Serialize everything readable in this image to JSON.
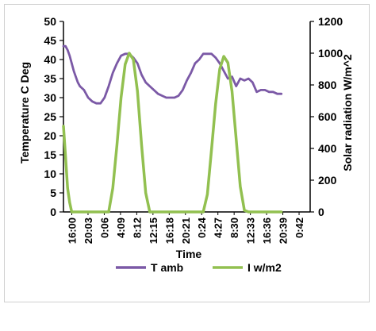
{
  "chart_data": {
    "type": "line",
    "xlabel": "Time",
    "ylabel_left": "Temperature C Deg",
    "ylabel_right": "Solar radiation W/m^2",
    "ylim_left": [
      0,
      50
    ],
    "yticks_left": [
      "0",
      "5",
      "10",
      "15",
      "20",
      "25",
      "30",
      "35",
      "40",
      "45",
      "50"
    ],
    "ylim_right": [
      0,
      1200
    ],
    "yticks_right": [
      "0",
      "200",
      "400",
      "600",
      "800",
      "1000",
      "1200"
    ],
    "x_tick_labels": [
      "16:00",
      "20:03",
      "0:06",
      "4:09",
      "8:12",
      "12:15",
      "16:18",
      "20:21",
      "0:24",
      "4:27",
      "8:30",
      "12:33",
      "16:36",
      "20:39",
      "0:42"
    ],
    "x_range_hours": [
      0,
      60
    ],
    "grid": false,
    "legend_position": "bottom",
    "series": [
      {
        "name": "T amb",
        "axis": "left",
        "color": "#7B59A6",
        "x_hours": [
          0,
          0.5,
          1,
          1.5,
          2,
          2.5,
          3,
          3.5,
          4,
          5,
          6,
          7,
          8,
          9,
          10,
          11,
          12,
          13,
          14,
          15,
          16,
          17,
          18,
          19,
          20,
          21,
          22,
          23,
          24,
          25,
          26,
          27,
          28,
          29,
          30,
          31,
          32,
          33,
          34,
          35,
          36,
          37,
          38,
          39,
          40,
          41,
          42,
          43,
          44,
          45,
          46,
          47,
          48,
          49,
          50,
          51,
          52,
          53
        ],
        "values": [
          43.5,
          43.5,
          42.5,
          41,
          39,
          37,
          35.5,
          34,
          33,
          32,
          30,
          29,
          28.5,
          28.5,
          30,
          33,
          36.5,
          39,
          41,
          41.5,
          41.5,
          40.5,
          39,
          36,
          34,
          33,
          32,
          31,
          30.5,
          30,
          30,
          30,
          30.5,
          32,
          34.5,
          36.5,
          39,
          40,
          41.5,
          41.5,
          41.5,
          40.5,
          39,
          37,
          35,
          35.5,
          33,
          35,
          34.5,
          35,
          34,
          31.5,
          32,
          32,
          31.5,
          31.5,
          31,
          31
        ]
      },
      {
        "name": "I w/m2",
        "axis": "right",
        "color": "#92C050",
        "x_hours": [
          0,
          0.5,
          1,
          1.5,
          2,
          3,
          5,
          8,
          10,
          11,
          12,
          13,
          14,
          15,
          16,
          17,
          18,
          19,
          20,
          21,
          24,
          28,
          32,
          34,
          35,
          36,
          37,
          38,
          39,
          40,
          41,
          42,
          43,
          44,
          45,
          48,
          52,
          53
        ],
        "values": [
          540,
          350,
          150,
          60,
          0,
          0,
          0,
          0,
          0,
          0,
          150,
          420,
          720,
          930,
          1000,
          960,
          760,
          420,
          120,
          0,
          0,
          0,
          0,
          0,
          110,
          390,
          680,
          900,
          980,
          940,
          760,
          460,
          160,
          10,
          0,
          0,
          0,
          0
        ]
      }
    ]
  }
}
